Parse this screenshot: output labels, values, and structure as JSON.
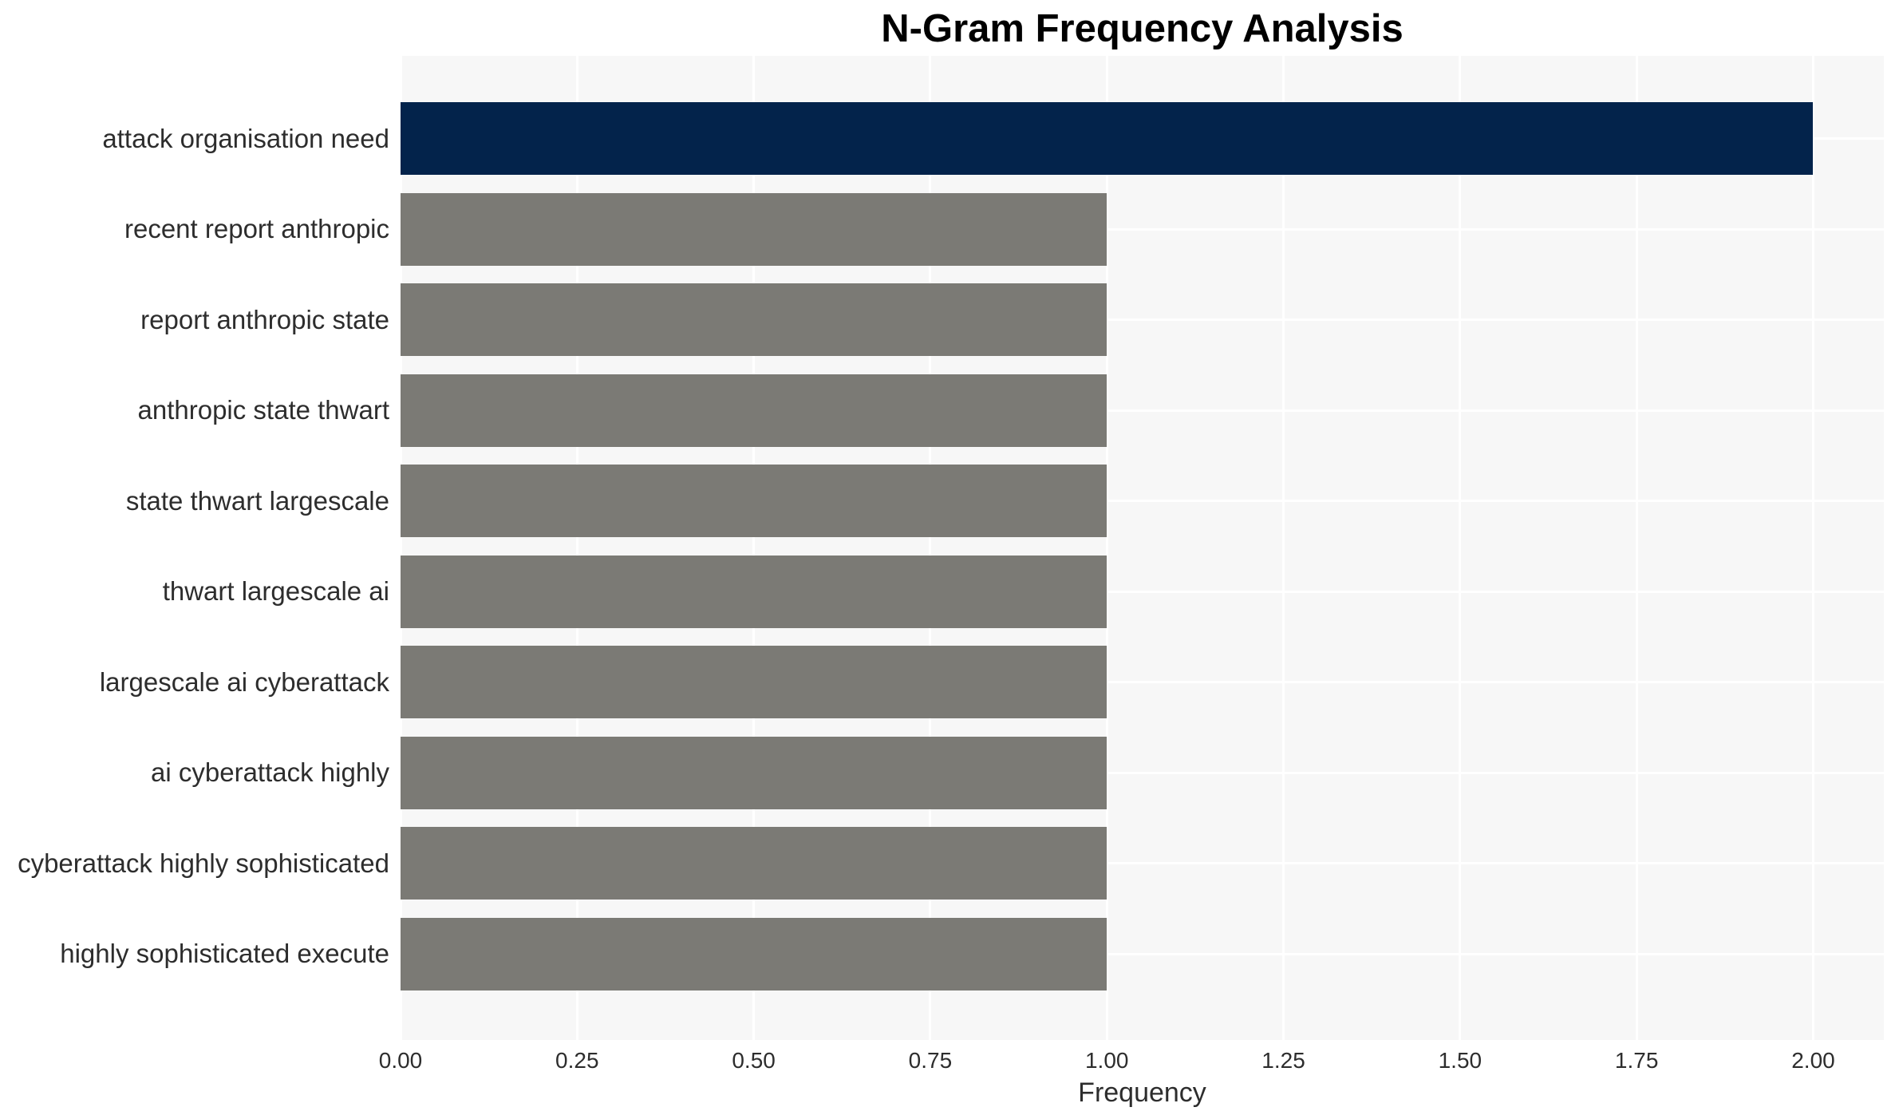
{
  "chart_data": {
    "type": "bar",
    "orientation": "horizontal",
    "title": "N-Gram Frequency Analysis",
    "xlabel": "Frequency",
    "ylabel": "",
    "categories": [
      "attack organisation need",
      "recent report anthropic",
      "report anthropic state",
      "anthropic state thwart",
      "state thwart largescale",
      "thwart largescale ai",
      "largescale ai cyberattack",
      "ai cyberattack highly",
      "cyberattack highly sophisticated",
      "highly sophisticated execute"
    ],
    "values": [
      2,
      1,
      1,
      1,
      1,
      1,
      1,
      1,
      1,
      1
    ],
    "xlim": [
      0,
      2.1
    ],
    "xticks": [
      0,
      0.25,
      0.5,
      0.75,
      1.0,
      1.25,
      1.5,
      1.75,
      2.0
    ],
    "xtick_labels": [
      "0.00",
      "0.25",
      "0.50",
      "0.75",
      "1.00",
      "1.25",
      "1.50",
      "1.75",
      "2.00"
    ],
    "grid": true,
    "legend": false,
    "colors": {
      "bar_highlight": "#03234b",
      "bar_default": "#7b7a75",
      "plot_background": "#f7f7f7",
      "gridline": "#ffffff",
      "tick_text": "#2d2d2d",
      "title_text": "#000000"
    },
    "bar_colors": [
      "#03234b",
      "#7b7a75",
      "#7b7a75",
      "#7b7a75",
      "#7b7a75",
      "#7b7a75",
      "#7b7a75",
      "#7b7a75",
      "#7b7a75",
      "#7b7a75"
    ]
  }
}
